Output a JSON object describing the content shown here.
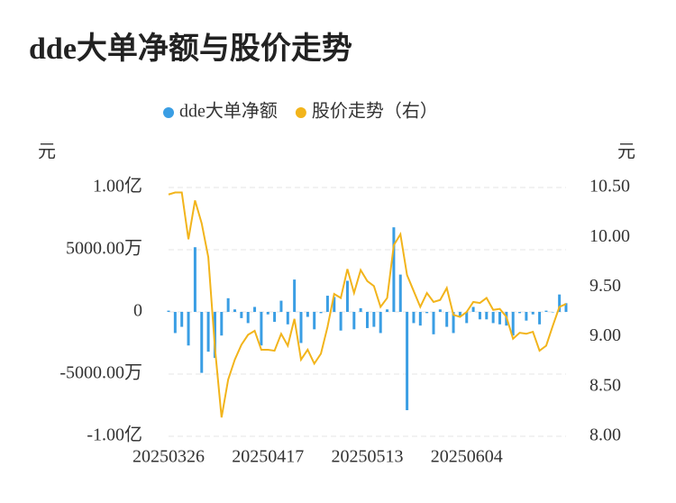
{
  "chart_data": {
    "type": "bar-line",
    "title": "dde大单净额与股价走势",
    "y_label": "元",
    "y2_label": "元",
    "legend_position": "top",
    "grid": true,
    "categories": [
      "20250326",
      null,
      null,
      null,
      null,
      null,
      null,
      null,
      null,
      null,
      null,
      null,
      null,
      null,
      null,
      "20250417",
      null,
      null,
      null,
      null,
      null,
      null,
      null,
      null,
      null,
      null,
      null,
      null,
      null,
      null,
      "20250513",
      null,
      null,
      null,
      null,
      null,
      null,
      null,
      null,
      null,
      null,
      null,
      null,
      null,
      null,
      "20250604",
      null,
      null,
      null,
      null,
      null,
      null,
      null,
      null,
      null,
      null,
      null,
      null,
      null,
      null,
      null
    ],
    "ylim": [
      -100000000,
      100000000
    ],
    "yticks": [
      {
        "value": 100000000,
        "label": "1.00亿"
      },
      {
        "value": 50000000,
        "label": "5000.00万"
      },
      0,
      {
        "value": -50000000,
        "label": "-5000.00万"
      },
      {
        "value": -100000000,
        "label": "-1.00亿"
      }
    ],
    "y2lim": [
      8,
      10.5
    ],
    "y2ticks": [
      {
        "value": 10.5,
        "label": "10.50"
      },
      {
        "value": 10,
        "label": "10.00"
      },
      {
        "value": 9.5,
        "label": "9.50"
      },
      {
        "value": 9,
        "label": "9.00"
      },
      {
        "value": 8.5,
        "label": "8.50"
      },
      {
        "value": 8,
        "label": "8.00"
      }
    ],
    "series": [
      {
        "name": "dde大单净额",
        "color": "#3a9ee4",
        "kind": "bar",
        "values": [
          1000000,
          -17000000,
          -12000000,
          -27000000,
          52000000,
          -49000000,
          -32000000,
          -37000000,
          -19000000,
          11000000,
          2000000,
          -5000000,
          -9000000,
          4000000,
          -27000000,
          -2000000,
          -8000000,
          9000000,
          -10000000,
          26000000,
          -25000000,
          -4000000,
          -14000000,
          -1000000,
          13000000,
          12000000,
          -15000000,
          25000000,
          -14000000,
          3000000,
          -13000000,
          -12000000,
          -17000000,
          2000000,
          68000000,
          30000000,
          -79000000,
          -9000000,
          -11000000,
          -1000000,
          -18000000,
          2000000,
          -12000000,
          -17000000,
          -4000000,
          -9000000,
          4000000,
          -6000000,
          -6000000,
          -9000000,
          -10000000,
          -11000000,
          -19000000,
          -1000000,
          -7000000,
          -2000000,
          -10000000,
          1000000,
          0,
          14000000,
          7000000
        ]
      },
      {
        "name": "股价走势（右）",
        "color": "#f2b41b",
        "kind": "line",
        "axis": "y2",
        "values": [
          10.43,
          10.45,
          10.45,
          9.98,
          10.37,
          10.14,
          9.8,
          8.89,
          8.19,
          8.57,
          8.77,
          8.92,
          9.02,
          9.06,
          8.87,
          8.87,
          8.86,
          9.03,
          8.91,
          9.18,
          8.77,
          8.87,
          8.73,
          8.83,
          9.1,
          9.43,
          9.39,
          9.68,
          9.44,
          9.67,
          9.56,
          9.51,
          9.3,
          9.39,
          9.92,
          10.03,
          9.62,
          9.46,
          9.3,
          9.44,
          9.35,
          9.37,
          9.49,
          9.22,
          9.2,
          9.25,
          9.35,
          9.34,
          9.39,
          9.27,
          9.28,
          9.2,
          8.98,
          9.04,
          9.03,
          9.05,
          8.86,
          8.91,
          9.11,
          9.3,
          9.33
        ]
      }
    ]
  }
}
